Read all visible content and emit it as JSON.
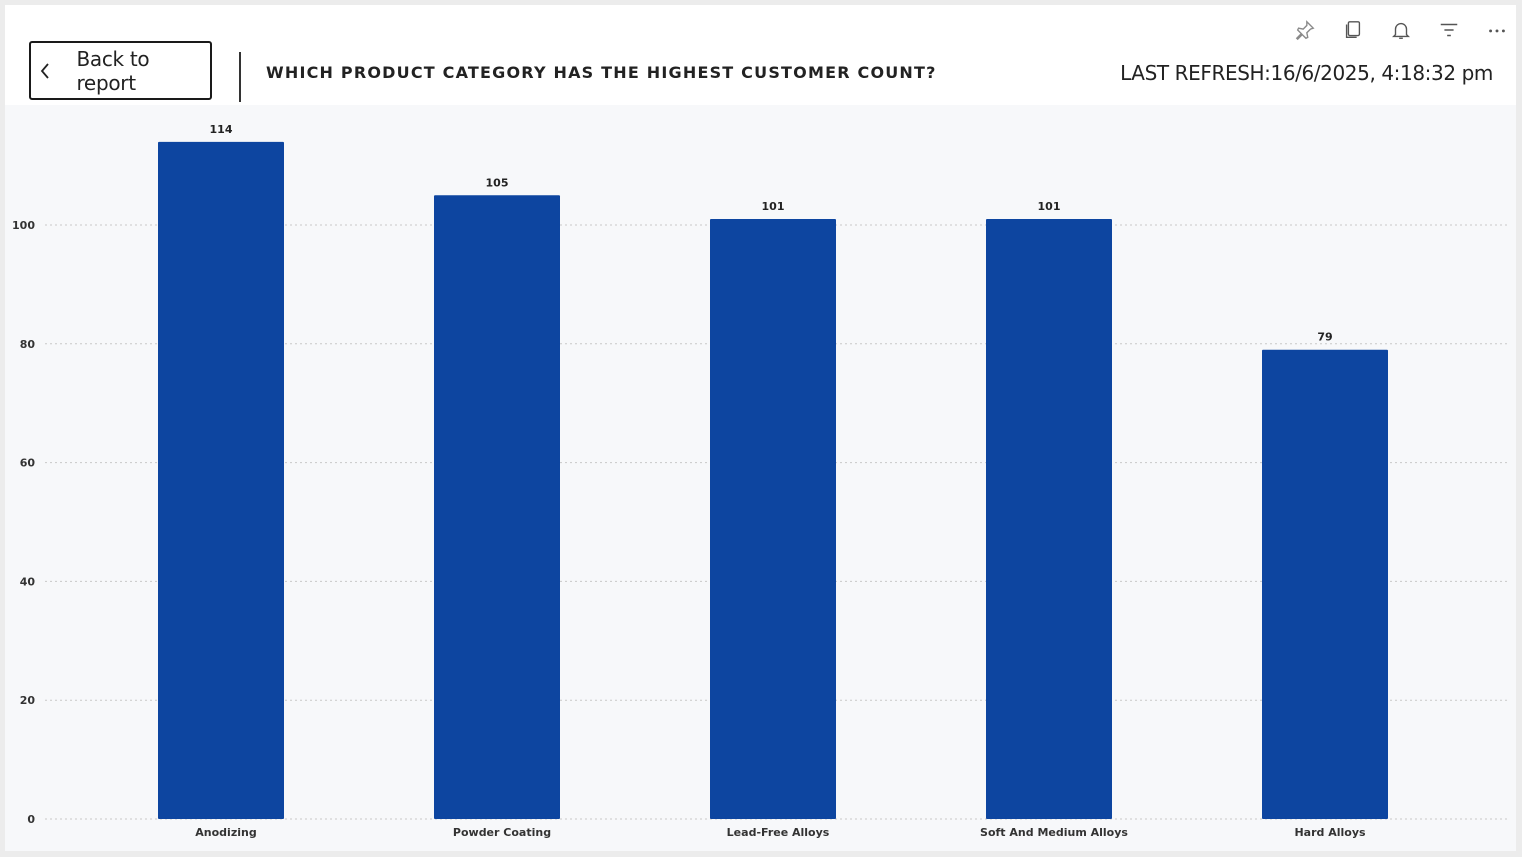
{
  "header": {
    "back_label": "Back to report",
    "title": "WHICH PRODUCT CATEGORY HAS THE HIGHEST CUSTOMER COUNT?",
    "last_refresh": "LAST REFRESH:16/6/2025, 4:18:32 pm"
  },
  "toolbar": {
    "icons": [
      "pin-icon",
      "copy-icon",
      "bell-icon",
      "filter-icon",
      "more-icon"
    ]
  },
  "colors": {
    "bar": "#0d45a0",
    "grid": "#c8c8c8",
    "plot_background": "#f7f8fa"
  },
  "chart_data": {
    "type": "bar",
    "categories": [
      "Anodizing",
      "Powder Coating",
      "Lead-Free Alloys",
      "Soft And Medium Alloys",
      "Hard Alloys"
    ],
    "values": [
      114,
      105,
      101,
      101,
      79
    ],
    "data_labels": [
      "114",
      "105",
      "101",
      "101",
      "79"
    ],
    "title": "WHICH PRODUCT CATEGORY HAS THE HIGHEST CUSTOMER COUNT?",
    "xlabel": "",
    "ylabel": "",
    "ylim": [
      0,
      115
    ],
    "yticks": [
      0,
      20,
      40,
      60,
      80,
      100
    ],
    "ytick_labels": [
      "0",
      "20",
      "40",
      "60",
      "80",
      "100"
    ],
    "grid": true,
    "legend": "none"
  }
}
